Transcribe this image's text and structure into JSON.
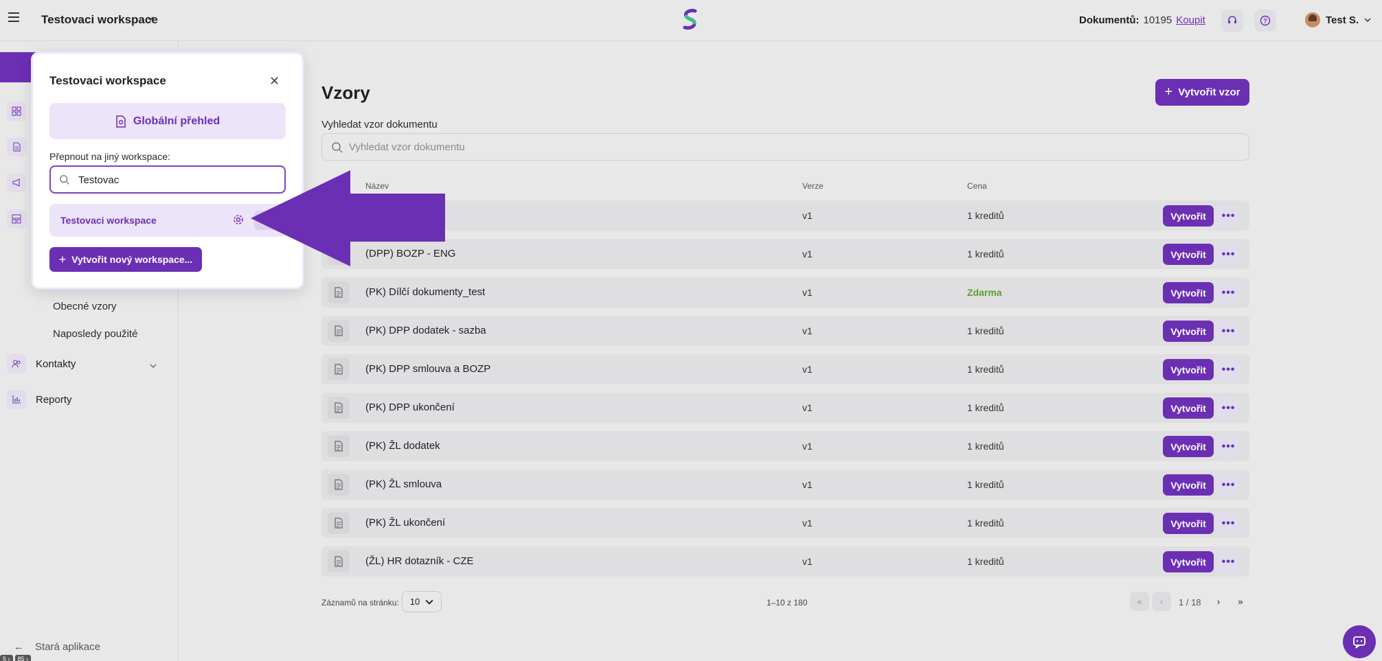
{
  "header": {
    "workspace_name": "Testovaci workspace",
    "documents_label": "Dokumentů:",
    "documents_count": "10195",
    "buy_label": "Koupit",
    "user_name": "Test S."
  },
  "sidebar": {
    "sub_items": [
      "Obecné vzory",
      "Naposledy použité"
    ],
    "contacts_label": "Kontakty",
    "reports_label": "Reporty",
    "old_app_label": "Stará aplikace"
  },
  "main": {
    "title": "Vzory",
    "create_button": "Vytvořit vzor",
    "search_label": "Vyhledat vzor dokumentu",
    "search_placeholder": "Vyhledat vzor dokumentu",
    "columns": {
      "name": "Název",
      "version": "Verze",
      "price": "Cena"
    },
    "rows": [
      {
        "name": "",
        "version": "v1",
        "price": "1 kreditů",
        "action": "Vytvořit"
      },
      {
        "name": "(DPP) BOZP - ENG",
        "version": "v1",
        "price": "1 kreditů",
        "action": "Vytvořit"
      },
      {
        "name": "(PK) Dílčí dokumenty_test",
        "version": "v1",
        "price": "Zdarma",
        "action": "Vytvořit"
      },
      {
        "name": "(PK) DPP dodatek - sazba",
        "version": "v1",
        "price": "1 kreditů",
        "action": "Vytvořit"
      },
      {
        "name": "(PK) DPP smlouva a BOZP",
        "version": "v1",
        "price": "1 kreditů",
        "action": "Vytvořit"
      },
      {
        "name": "(PK) DPP ukončení",
        "version": "v1",
        "price": "1 kreditů",
        "action": "Vytvořit"
      },
      {
        "name": "(PK) ŽL dodatek",
        "version": "v1",
        "price": "1 kreditů",
        "action": "Vytvořit"
      },
      {
        "name": "(PK) ŽL smlouva",
        "version": "v1",
        "price": "1 kreditů",
        "action": "Vytvořit"
      },
      {
        "name": "(PK) ŽL ukončení",
        "version": "v1",
        "price": "1 kreditů",
        "action": "Vytvořit"
      },
      {
        "name": "(ŽL) HR dotazník - CZE",
        "version": "v1",
        "price": "1 kreditů",
        "action": "Vytvořit"
      }
    ],
    "pagination": {
      "per_page_label": "Záznamů na stránku:",
      "per_page_value": "10",
      "range": "1–10 z 180",
      "page": "1 / 18"
    }
  },
  "popup": {
    "title": "Testovaci workspace",
    "global_button": "Globální přehled",
    "switch_label": "Přepnout na jiný workspace:",
    "search_value": "Testovac",
    "workspace_item": "Testovaci workspace",
    "new_workspace_button": "Vytvořit nový workspace..."
  },
  "badges": [
    "5 ›",
    "85 ›"
  ],
  "colors": {
    "accent": "#6b2fb3",
    "accent_light": "#ece4f8",
    "free": "#5f9e2e"
  }
}
